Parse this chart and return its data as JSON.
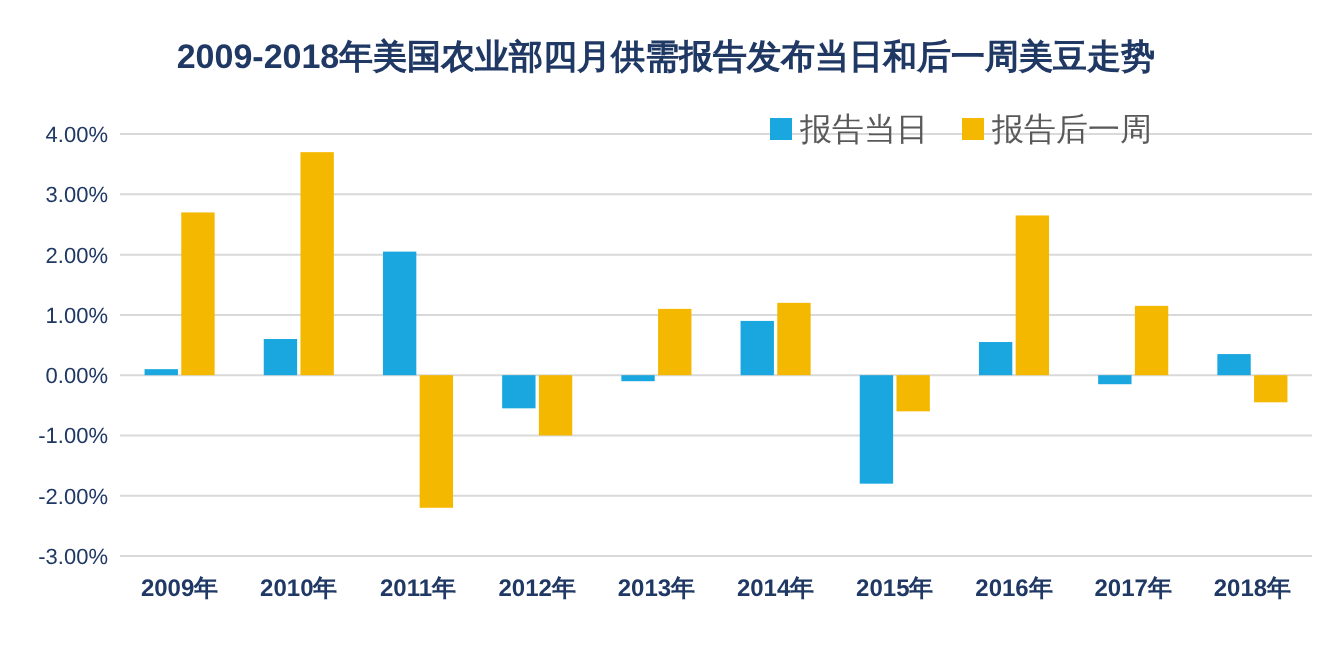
{
  "chart_data": {
    "type": "bar",
    "title": "2009-2018年美国农业部四月供需报告发布当日和后一周美豆走势",
    "categories": [
      "2009年",
      "2010年",
      "2011年",
      "2012年",
      "2013年",
      "2014年",
      "2015年",
      "2016年",
      "2017年",
      "2018年"
    ],
    "series": [
      {
        "name": "报告当日",
        "color": "#1aa7e0",
        "values": [
          0.1,
          0.6,
          2.05,
          -0.55,
          -0.1,
          0.9,
          -1.8,
          0.55,
          -0.15,
          0.35
        ]
      },
      {
        "name": "报告后一周",
        "color": "#f5b800",
        "values": [
          2.7,
          3.7,
          -2.2,
          -1.0,
          1.1,
          1.2,
          -0.6,
          2.65,
          1.15,
          -0.45
        ]
      }
    ],
    "ylim": [
      -3,
      4.3
    ],
    "yticks": [
      {
        "value": -3,
        "label": "-3.00%"
      },
      {
        "value": -2,
        "label": "-2.00%"
      },
      {
        "value": -1,
        "label": "-1.00%"
      },
      {
        "value": 0,
        "label": "0.00%"
      },
      {
        "value": 1,
        "label": "1.00%"
      },
      {
        "value": 2,
        "label": "2.00%"
      },
      {
        "value": 3,
        "label": "3.00%"
      },
      {
        "value": 4,
        "label": "4.00%"
      }
    ],
    "grid": "y",
    "legend": "top right"
  }
}
